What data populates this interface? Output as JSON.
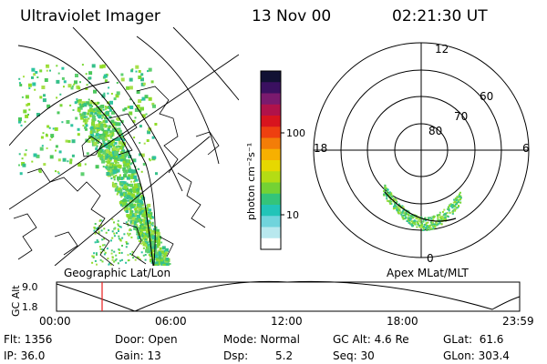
{
  "header": {
    "instrument": "Ultraviolet Imager",
    "date": "13 Nov 00",
    "time": "02:21:30 UT"
  },
  "colorbar": {
    "label": "photon cm⁻²s⁻¹",
    "ticks": [
      "100",
      "10"
    ],
    "colors": [
      "#111133",
      "#3a1060",
      "#7a1a6e",
      "#b0124a",
      "#d8141e",
      "#ee4010",
      "#f37d08",
      "#f7b000",
      "#e6d800",
      "#b4dc14",
      "#74d234",
      "#34c47a",
      "#22c4b8",
      "#70d4dc",
      "#b8e8ee",
      "#ffffff"
    ]
  },
  "geo_map": {
    "caption": "Geographic Lat/Lon"
  },
  "polar_plot": {
    "caption": "Apex MLat/MLT",
    "lat_rings": [
      "80",
      "70",
      "60"
    ],
    "mlt_labels": {
      "top": "12",
      "left": "18",
      "right": "6",
      "bottom": "0"
    }
  },
  "altitude_plot": {
    "axis_label": "GC Alt",
    "y_ticks": [
      "9.0",
      "1.8"
    ],
    "x_ticks": [
      "00:00",
      "06:00",
      "12:00",
      "18:00",
      "23:59"
    ],
    "current_time_marker_hours": 2.36,
    "marker_color": "#e81c1c"
  },
  "status": {
    "flt": "Flt: 1356",
    "ip": "IP: 36.0",
    "door": "Door: Open",
    "gain": "Gain: 13",
    "mode": "Mode: Normal",
    "dsp_label": "Dsp:",
    "dsp_value": "5.2",
    "gcalt": "GC Alt: 4.6 Re",
    "seq": "Seq: 30",
    "glat": "GLat:  61.6",
    "glon": "GLon: 303.4"
  }
}
